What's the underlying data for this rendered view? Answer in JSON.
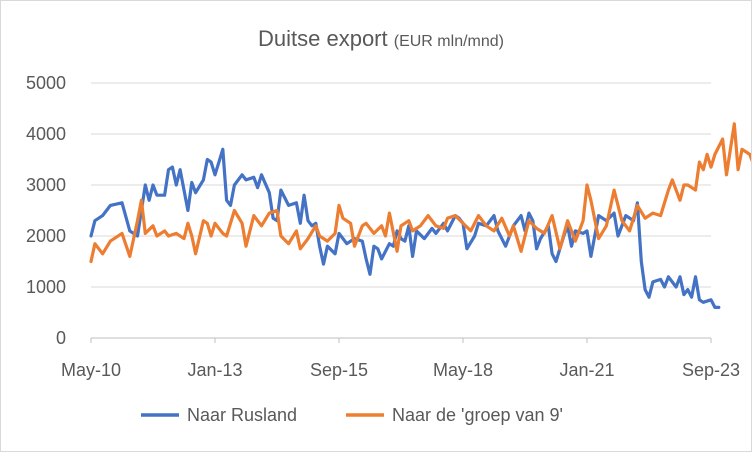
{
  "chart_data": {
    "type": "line",
    "title": "Duitse export",
    "title_unit": "(EUR mln/mnd)",
    "xlabel": "",
    "ylabel": "",
    "ylim": [
      0,
      5000
    ],
    "yticks": [
      0,
      1000,
      2000,
      3000,
      4000,
      5000
    ],
    "xtick_labels": [
      "May-10",
      "Jan-13",
      "Sep-15",
      "May-18",
      "Jan-21",
      "Sep-23"
    ],
    "x_start": "May-10",
    "x_end": "Sep-23",
    "grid": "horizontal",
    "legend_position": "bottom",
    "colors": {
      "rusland": "#4472c4",
      "groep9": "#ed7d31",
      "grid": "#d9d9d9",
      "text": "#595959"
    },
    "series": [
      {
        "name": "Naar Rusland",
        "color": "#4472c4",
        "points": [
          [
            "2010-05",
            2000
          ],
          [
            "2010-06",
            2300
          ],
          [
            "2010-08",
            2400
          ],
          [
            "2010-10",
            2600
          ],
          [
            "2011-01",
            2650
          ],
          [
            "2011-03",
            2100
          ],
          [
            "2011-05",
            2000
          ],
          [
            "2011-07",
            3000
          ],
          [
            "2011-08",
            2700
          ],
          [
            "2011-09",
            3000
          ],
          [
            "2011-10",
            2800
          ],
          [
            "2011-12",
            2800
          ],
          [
            "2012-01",
            3300
          ],
          [
            "2012-02",
            3350
          ],
          [
            "2012-03",
            3000
          ],
          [
            "2012-04",
            3300
          ],
          [
            "2012-05",
            2900
          ],
          [
            "2012-06",
            2500
          ],
          [
            "2012-07",
            3050
          ],
          [
            "2012-08",
            2850
          ],
          [
            "2012-10",
            3100
          ],
          [
            "2012-11",
            3500
          ],
          [
            "2012-12",
            3450
          ],
          [
            "2013-01",
            3200
          ],
          [
            "2013-02",
            3450
          ],
          [
            "2013-03",
            3700
          ],
          [
            "2013-04",
            2700
          ],
          [
            "2013-05",
            2600
          ],
          [
            "2013-06",
            3000
          ],
          [
            "2013-08",
            3200
          ],
          [
            "2013-09",
            3100
          ],
          [
            "2013-11",
            3150
          ],
          [
            "2013-12",
            2950
          ],
          [
            "2014-01",
            3200
          ],
          [
            "2014-03",
            2850
          ],
          [
            "2014-04",
            2350
          ],
          [
            "2014-05",
            2300
          ],
          [
            "2014-06",
            2900
          ],
          [
            "2014-08",
            2600
          ],
          [
            "2014-10",
            2650
          ],
          [
            "2014-11",
            2250
          ],
          [
            "2014-12",
            2800
          ],
          [
            "2015-01",
            2300
          ],
          [
            "2015-02",
            2200
          ],
          [
            "2015-03",
            2250
          ],
          [
            "2015-04",
            1800
          ],
          [
            "2015-05",
            1450
          ],
          [
            "2015-06",
            1800
          ],
          [
            "2015-08",
            1650
          ],
          [
            "2015-09",
            2050
          ],
          [
            "2015-11",
            1850
          ],
          [
            "2016-01",
            1950
          ],
          [
            "2016-03",
            1900
          ],
          [
            "2016-04",
            1550
          ],
          [
            "2016-05",
            1250
          ],
          [
            "2016-06",
            1800
          ],
          [
            "2016-07",
            1750
          ],
          [
            "2016-08",
            1550
          ],
          [
            "2016-10",
            1850
          ],
          [
            "2016-11",
            1800
          ],
          [
            "2016-12",
            2100
          ],
          [
            "2017-01",
            1950
          ],
          [
            "2017-02",
            1900
          ],
          [
            "2017-03",
            2200
          ],
          [
            "2017-04",
            1600
          ],
          [
            "2017-05",
            2100
          ],
          [
            "2017-07",
            1950
          ],
          [
            "2017-09",
            2150
          ],
          [
            "2017-10",
            2050
          ],
          [
            "2017-12",
            2250
          ],
          [
            "2018-01",
            2100
          ],
          [
            "2018-03",
            2400
          ],
          [
            "2018-04",
            2350
          ],
          [
            "2018-05",
            2250
          ],
          [
            "2018-06",
            1750
          ],
          [
            "2018-08",
            2000
          ],
          [
            "2018-09",
            2250
          ],
          [
            "2018-11",
            2200
          ],
          [
            "2019-01",
            2400
          ],
          [
            "2019-02",
            2100
          ],
          [
            "2019-04",
            1800
          ],
          [
            "2019-06",
            2200
          ],
          [
            "2019-08",
            2400
          ],
          [
            "2019-09",
            2100
          ],
          [
            "2019-10",
            2450
          ],
          [
            "2019-11",
            2300
          ],
          [
            "2019-12",
            1750
          ],
          [
            "2020-01",
            1950
          ],
          [
            "2020-03",
            2200
          ],
          [
            "2020-04",
            1650
          ],
          [
            "2020-05",
            1500
          ],
          [
            "2020-07",
            2000
          ],
          [
            "2020-08",
            2200
          ],
          [
            "2020-09",
            1800
          ],
          [
            "2020-10",
            2100
          ],
          [
            "2020-12",
            2050
          ],
          [
            "2021-01",
            2100
          ],
          [
            "2021-02",
            1600
          ],
          [
            "2021-04",
            2400
          ],
          [
            "2021-06",
            2300
          ],
          [
            "2021-08",
            2450
          ],
          [
            "2021-09",
            2000
          ],
          [
            "2021-11",
            2400
          ],
          [
            "2022-01",
            2300
          ],
          [
            "2022-02",
            2650
          ],
          [
            "2022-03",
            1500
          ],
          [
            "2022-04",
            950
          ],
          [
            "2022-05",
            800
          ],
          [
            "2022-06",
            1100
          ],
          [
            "2022-08",
            1150
          ],
          [
            "2022-09",
            1000
          ],
          [
            "2022-10",
            1200
          ],
          [
            "2022-12",
            1000
          ],
          [
            "2023-01",
            1200
          ],
          [
            "2023-02",
            850
          ],
          [
            "2023-03",
            950
          ],
          [
            "2023-04",
            800
          ],
          [
            "2023-05",
            1200
          ],
          [
            "2023-06",
            750
          ],
          [
            "2023-07",
            700
          ],
          [
            "2023-09",
            750
          ],
          [
            "2023-10",
            600
          ],
          [
            "2023-11",
            600
          ]
        ]
      },
      {
        "name": "Naar de 'groep van 9'",
        "color": "#ed7d31",
        "points": [
          [
            "2010-05",
            1500
          ],
          [
            "2010-06",
            1850
          ],
          [
            "2010-08",
            1650
          ],
          [
            "2010-10",
            1900
          ],
          [
            "2011-01",
            2050
          ],
          [
            "2011-03",
            1600
          ],
          [
            "2011-05",
            2300
          ],
          [
            "2011-06",
            2700
          ],
          [
            "2011-07",
            2050
          ],
          [
            "2011-09",
            2200
          ],
          [
            "2011-10",
            2000
          ],
          [
            "2011-12",
            2100
          ],
          [
            "2012-01",
            2000
          ],
          [
            "2012-03",
            2050
          ],
          [
            "2012-05",
            1950
          ],
          [
            "2012-06",
            2250
          ],
          [
            "2012-07",
            2000
          ],
          [
            "2012-08",
            1650
          ],
          [
            "2012-10",
            2300
          ],
          [
            "2012-11",
            2250
          ],
          [
            "2012-12",
            2000
          ],
          [
            "2013-01",
            2250
          ],
          [
            "2013-03",
            2050
          ],
          [
            "2013-04",
            2000
          ],
          [
            "2013-06",
            2500
          ],
          [
            "2013-08",
            2250
          ],
          [
            "2013-09",
            1800
          ],
          [
            "2013-11",
            2400
          ],
          [
            "2014-01",
            2200
          ],
          [
            "2014-03",
            2450
          ],
          [
            "2014-05",
            2500
          ],
          [
            "2014-06",
            2000
          ],
          [
            "2014-08",
            1850
          ],
          [
            "2014-10",
            2100
          ],
          [
            "2014-11",
            1750
          ],
          [
            "2015-01",
            1950
          ],
          [
            "2015-03",
            2200
          ],
          [
            "2015-04",
            2000
          ],
          [
            "2015-06",
            1900
          ],
          [
            "2015-08",
            2050
          ],
          [
            "2015-09",
            2600
          ],
          [
            "2015-10",
            2350
          ],
          [
            "2015-12",
            2250
          ],
          [
            "2016-01",
            1800
          ],
          [
            "2016-03",
            2200
          ],
          [
            "2016-04",
            2250
          ],
          [
            "2016-06",
            2050
          ],
          [
            "2016-08",
            2200
          ],
          [
            "2016-09",
            2000
          ],
          [
            "2016-10",
            2450
          ],
          [
            "2016-12",
            1700
          ],
          [
            "2017-01",
            2200
          ],
          [
            "2017-03",
            2300
          ],
          [
            "2017-04",
            2100
          ],
          [
            "2017-06",
            2200
          ],
          [
            "2017-08",
            2400
          ],
          [
            "2017-10",
            2200
          ],
          [
            "2017-12",
            2150
          ],
          [
            "2018-01",
            2350
          ],
          [
            "2018-03",
            2400
          ],
          [
            "2018-05",
            2250
          ],
          [
            "2018-07",
            2100
          ],
          [
            "2018-09",
            2400
          ],
          [
            "2018-11",
            2200
          ],
          [
            "2019-01",
            2100
          ],
          [
            "2019-03",
            2350
          ],
          [
            "2019-05",
            2000
          ],
          [
            "2019-06",
            2200
          ],
          [
            "2019-08",
            1700
          ],
          [
            "2019-10",
            2300
          ],
          [
            "2019-12",
            2150
          ],
          [
            "2020-02",
            2050
          ],
          [
            "2020-04",
            2400
          ],
          [
            "2020-06",
            1750
          ],
          [
            "2020-08",
            2300
          ],
          [
            "2020-10",
            1900
          ],
          [
            "2020-12",
            2300
          ],
          [
            "2021-01",
            3000
          ],
          [
            "2021-02",
            2700
          ],
          [
            "2021-04",
            1950
          ],
          [
            "2021-06",
            2200
          ],
          [
            "2021-08",
            2900
          ],
          [
            "2021-10",
            2300
          ],
          [
            "2021-12",
            2100
          ],
          [
            "2022-02",
            2600
          ],
          [
            "2022-04",
            2350
          ],
          [
            "2022-06",
            2450
          ],
          [
            "2022-08",
            2400
          ],
          [
            "2022-10",
            2900
          ],
          [
            "2022-11",
            3100
          ],
          [
            "2023-01",
            2700
          ],
          [
            "2023-02",
            3000
          ],
          [
            "2023-03",
            3000
          ],
          [
            "2023-05",
            2900
          ],
          [
            "2023-06",
            3450
          ],
          [
            "2023-07",
            3300
          ],
          [
            "2023-08",
            3600
          ],
          [
            "2023-09",
            3350
          ],
          [
            "2023-10",
            3600
          ],
          [
            "2023-12",
            3900
          ],
          [
            "2024-01",
            3200
          ],
          [
            "2024-02",
            3700
          ],
          [
            "2024-03",
            4200
          ],
          [
            "2024-04",
            3300
          ],
          [
            "2024-05",
            3700
          ],
          [
            "2024-07",
            3600
          ],
          [
            "2024-08",
            3400
          ],
          [
            "2024-09",
            3250
          ],
          [
            "2024-10",
            3300
          ]
        ]
      }
    ]
  }
}
